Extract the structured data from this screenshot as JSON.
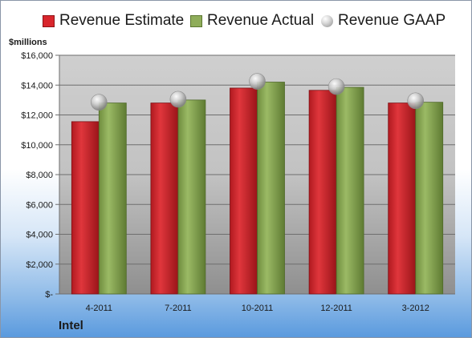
{
  "legend": {
    "estimate": "Revenue Estimate",
    "actual": "Revenue Actual",
    "gaap": "Revenue GAAP"
  },
  "unit_label": "$millions",
  "company": "Intel",
  "colors": {
    "estimate": "#d9262c",
    "actual": "#8fad5a",
    "gaap": "#b8b8b8"
  },
  "chart_data": {
    "type": "bar",
    "categories": [
      "4-2011",
      "7-2011",
      "10-2011",
      "12-2011",
      "3-2012"
    ],
    "series": [
      {
        "name": "Revenue Estimate",
        "type": "bar",
        "values": [
          11550,
          12800,
          13800,
          13650,
          12800
        ]
      },
      {
        "name": "Revenue Actual",
        "type": "bar",
        "values": [
          12800,
          13000,
          14200,
          13850,
          12850
        ]
      },
      {
        "name": "Revenue GAAP",
        "type": "marker",
        "values": [
          12850,
          13050,
          14250,
          13900,
          12950
        ]
      }
    ],
    "ylabel": "$millions",
    "xlabel": "",
    "ylim": [
      0,
      16000
    ],
    "yticks": [
      0,
      2000,
      4000,
      6000,
      8000,
      10000,
      12000,
      14000,
      16000
    ],
    "ytick_labels": [
      "$-",
      "$2,000",
      "$4,000",
      "$6,000",
      "$8,000",
      "$10,000",
      "$12,000",
      "$14,000",
      "$16,000"
    ],
    "grid": true,
    "legend_position": "top"
  }
}
